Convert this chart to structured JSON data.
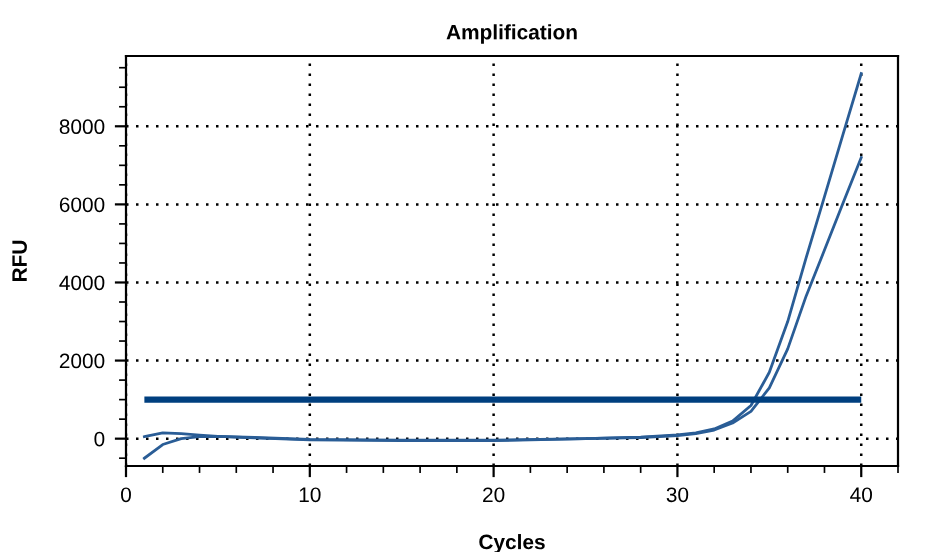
{
  "chart_data": {
    "type": "line",
    "title": "Amplification",
    "xlabel": "Cycles",
    "ylabel": "RFU",
    "x": [
      1,
      2,
      3,
      4,
      5,
      7,
      10,
      15,
      20,
      25,
      28,
      30,
      31,
      32,
      33,
      34,
      35,
      36,
      37,
      38,
      39,
      40
    ],
    "series": [
      {
        "color": "#2a5d96",
        "values": [
          50,
          150,
          130,
          90,
          60,
          20,
          -30,
          -50,
          -50,
          0,
          40,
          100,
          150,
          250,
          450,
          850,
          1700,
          3000,
          4630,
          6200,
          7780,
          9350
        ]
      },
      {
        "color": "#2a5d96",
        "values": [
          -500,
          -150,
          0,
          50,
          60,
          30,
          -20,
          -40,
          -40,
          0,
          30,
          80,
          130,
          220,
          400,
          700,
          1300,
          2300,
          3650,
          4830,
          6020,
          7200
        ]
      }
    ],
    "ref_lines": [
      {
        "axis": "y",
        "value": 1000,
        "color": "#003f7f"
      }
    ],
    "xlim": [
      0,
      42
    ],
    "xticks": [
      0,
      10,
      20,
      30,
      40
    ],
    "ylim": [
      -700,
      9800
    ],
    "yticks": [
      0,
      2000,
      4000,
      6000,
      8000
    ],
    "grid": true,
    "line_style": "solid",
    "marker": "none",
    "legend": false
  }
}
